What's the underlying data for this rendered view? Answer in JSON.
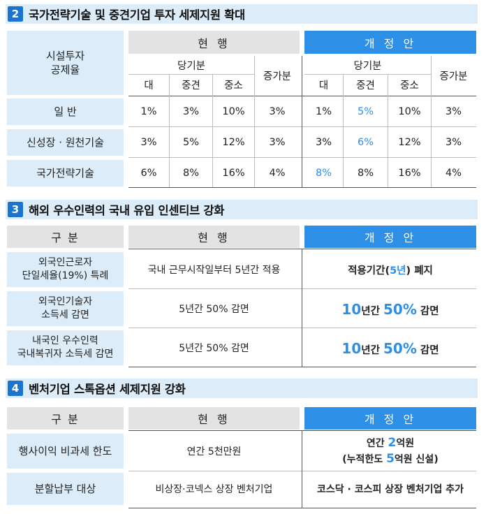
{
  "section2": {
    "number": "2",
    "title": "국가전략기술 및 중견기업 투자 세제지원 확대",
    "label_header": "시설투자\n공제율",
    "current_header": "현 행",
    "new_header": "개 정 안",
    "current_sub": "당기분",
    "current_increase": "증가분",
    "new_sub": "당기분",
    "new_increase": "증가분",
    "cols": [
      "대",
      "중견",
      "중소"
    ],
    "rows": [
      {
        "label": "일 반",
        "current": [
          "1%",
          "3%",
          "10%",
          "3%"
        ],
        "new": [
          "1%",
          "5%",
          "10%",
          "3%"
        ]
      },
      {
        "label": "신성장 · 원천기술",
        "current": [
          "3%",
          "5%",
          "12%",
          "3%"
        ],
        "new": [
          "3%",
          "6%",
          "12%",
          "3%"
        ]
      },
      {
        "label": "국가전략기술",
        "current": [
          "6%",
          "8%",
          "16%",
          "4%"
        ],
        "new": [
          "8%",
          "8%",
          "16%",
          "4%"
        ]
      }
    ]
  },
  "section3": {
    "number": "3",
    "title": "해외 우수인력의 국내 유입 인센티브 강화",
    "label_header": "구 분",
    "current_header": "현 행",
    "new_header": "개 정 안",
    "rows": [
      {
        "label": "외국인근로자\n단일세율(19%) 특례",
        "current": "국내 근무시작일부터 5년간 적용",
        "new": {
          "a": "적용기간(",
          "b": "5년",
          "c": ") 폐지"
        }
      },
      {
        "label": "외국인기술자\n소득세 감면",
        "current": "5년간 50% 감면",
        "new": {
          "a": "10",
          "b": "년간 ",
          "c": "50%",
          "d": " 감면"
        }
      },
      {
        "label": "내국인 우수인력\n국내복귀자 소득세 감면",
        "current": "5년간 50% 감면",
        "new": {
          "a": "10",
          "b": "년간 ",
          "c": "50%",
          "d": " 감면"
        }
      }
    ]
  },
  "section4": {
    "number": "4",
    "title": "벤처기업 스톡옵션 세제지원 강화",
    "label_header": "구 분",
    "current_header": "현 행",
    "new_header": "개 정 안",
    "rows": [
      {
        "label": "행사이익 비과세 한도",
        "current": "연간 5천만원",
        "new": {
          "a": "연간 ",
          "b": "2",
          "c": "억원",
          "d": "(누적한도 ",
          "e": "5",
          "f": "억원 신설)"
        }
      },
      {
        "label": "분할납부 대상",
        "current": "비상장·코넥스 상장 벤처기업",
        "new": {
          "a": "코스닥 · 코스피 상장 벤처기업 추가"
        }
      }
    ]
  },
  "colors": {
    "header_bg": "#dcecf9",
    "accent": "#2e8fe6",
    "number_bg": "#1b75d0",
    "gray_header": "#e3e3e3"
  }
}
